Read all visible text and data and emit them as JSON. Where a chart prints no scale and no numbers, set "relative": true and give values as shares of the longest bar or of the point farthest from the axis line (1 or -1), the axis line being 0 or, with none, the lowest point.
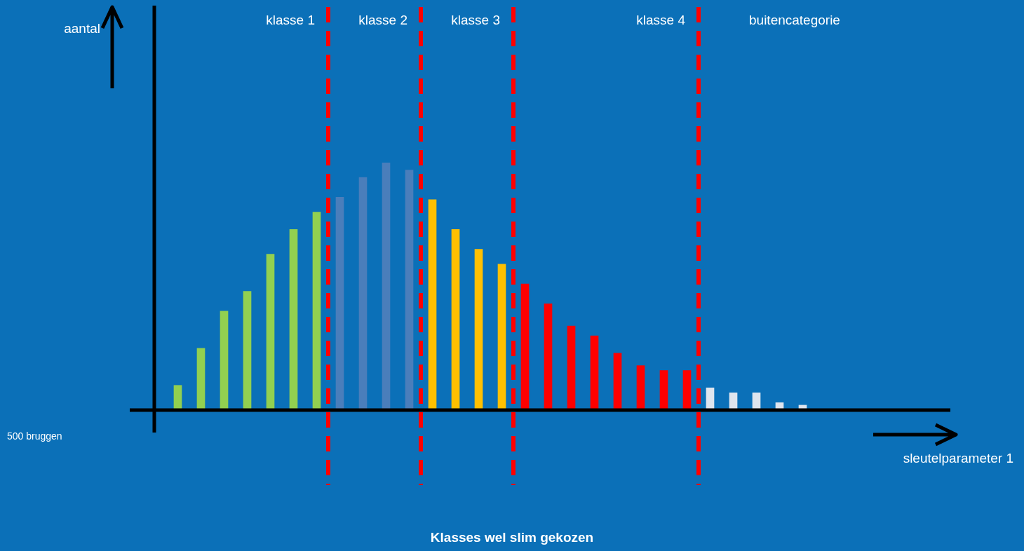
{
  "chart_data": {
    "type": "bar",
    "title": "Klasses wel slim gekozen",
    "relative": true,
    "categories": [
      null,
      null,
      null,
      null,
      null,
      null,
      null,
      null,
      null,
      null,
      null,
      null,
      null,
      null,
      null,
      null,
      null,
      null,
      null,
      null,
      null,
      null,
      null,
      null,
      null,
      null,
      null,
      null
    ],
    "values": [
      0.1,
      0.25,
      0.4,
      0.48,
      0.63,
      0.73,
      0.8,
      0.86,
      0.94,
      1,
      0.97,
      0.85,
      0.73,
      0.65,
      0.59,
      0.51,
      0.43,
      0.34,
      0.3,
      0.23,
      0.18,
      0.16,
      0.16,
      0.09,
      0.07,
      0.07,
      0.03,
      0.02
    ],
    "colors": [
      "#92d050",
      "#92d050",
      "#92d050",
      "#92d050",
      "#92d050",
      "#92d050",
      "#92d050",
      "#4a7ebb",
      "#4a7ebb",
      "#4a7ebb",
      "#4a7ebb",
      "#ffc000",
      "#ffc000",
      "#ffc000",
      "#ffc000",
      "#ff0000",
      "#ff0000",
      "#ff0000",
      "#ff0000",
      "#ff0000",
      "#ff0000",
      "#ff0000",
      "#ff0000",
      "#dfe5ee",
      "#dfe5ee",
      "#dfe5ee",
      "#dfe5ee",
      "#dfe5ee"
    ],
    "annotations": [
      "klasse 1",
      "klasse 2",
      "klasse 3",
      "klasse 4",
      "buitencategorie",
      "500 bruggen",
      "aantal",
      "sleutelparameter 1"
    ]
  }
}
